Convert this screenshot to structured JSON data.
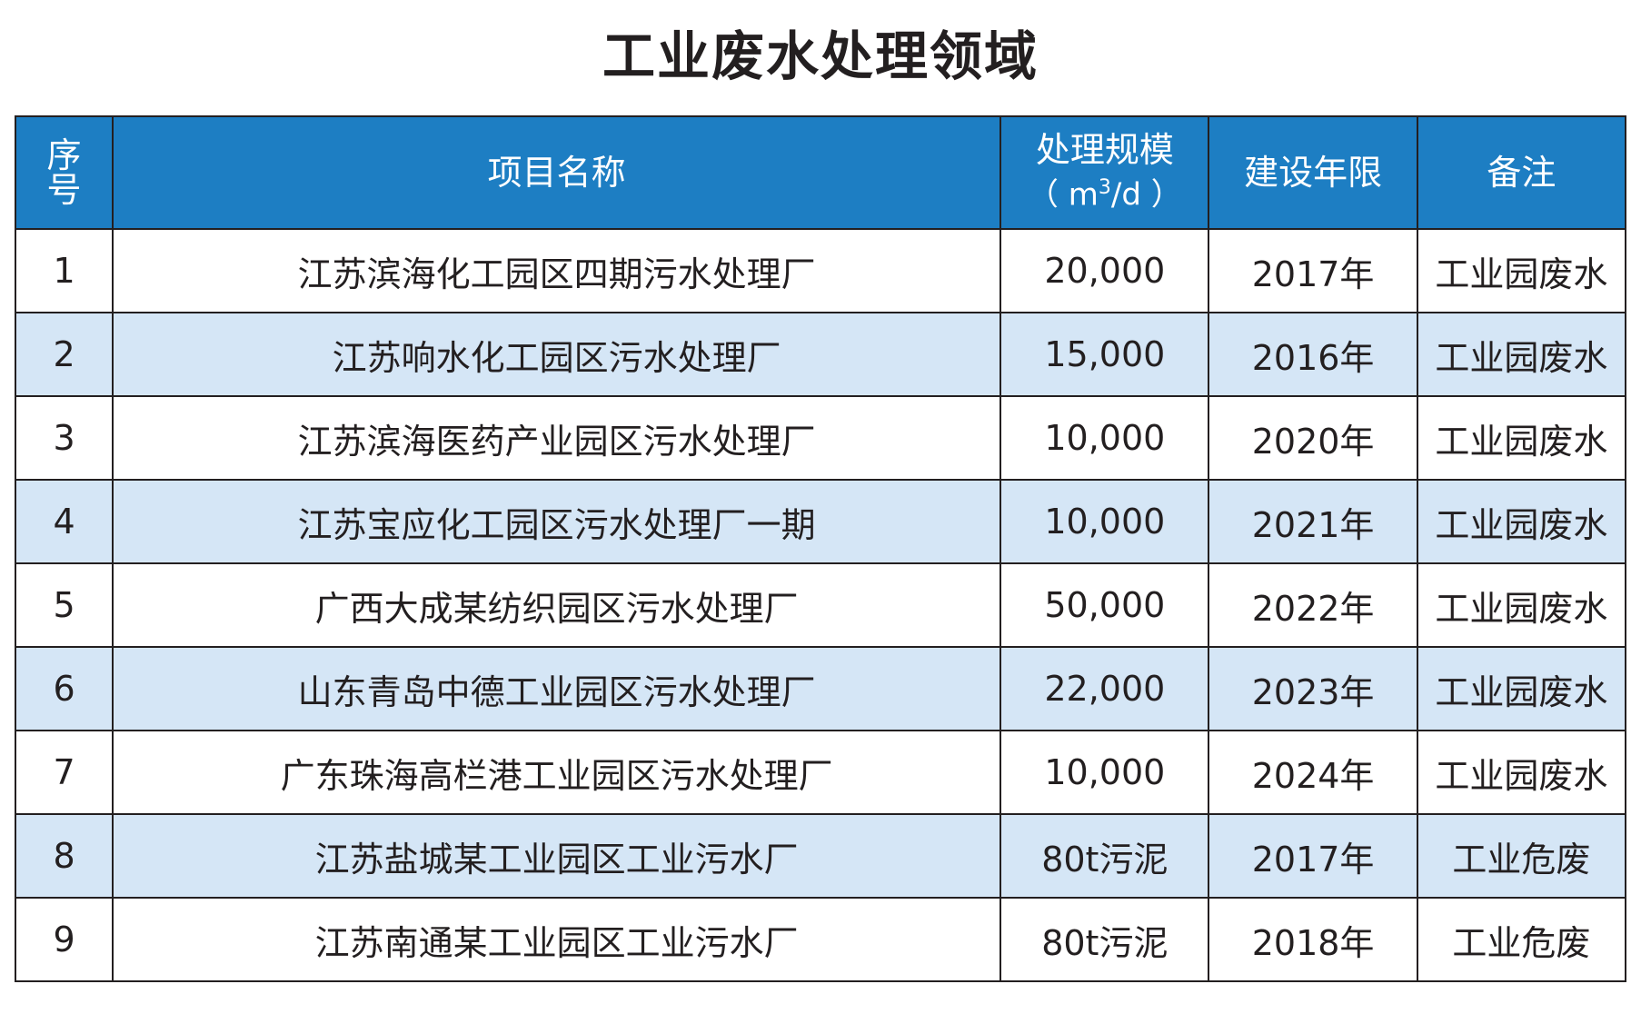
{
  "title": "工业废水处理领域",
  "header": {
    "no_line1": "序",
    "no_line2": "号",
    "name": "项目名称",
    "scale_line1": "处理规模",
    "scale_unit_pre": "（ m",
    "scale_unit_sup": "3",
    "scale_unit_post": "/d ）",
    "year": "建设年限",
    "note": "备注"
  },
  "rows": [
    {
      "no": "1",
      "name": "江苏滨海化工园区四期污水处理厂",
      "scale": "20,000",
      "year": "2017年",
      "note": "工业园废水"
    },
    {
      "no": "2",
      "name": "江苏响水化工园区污水处理厂",
      "scale": "15,000",
      "year": "2016年",
      "note": "工业园废水"
    },
    {
      "no": "3",
      "name": "江苏滨海医药产业园区污水处理厂",
      "scale": "10,000",
      "year": "2020年",
      "note": "工业园废水"
    },
    {
      "no": "4",
      "name": "江苏宝应化工园区污水处理厂一期",
      "scale": "10,000",
      "year": "2021年",
      "note": "工业园废水"
    },
    {
      "no": "5",
      "name": "广西大成某纺织园区污水处理厂",
      "scale": "50,000",
      "year": "2022年",
      "note": "工业园废水"
    },
    {
      "no": "6",
      "name": "山东青岛中德工业园区污水处理厂",
      "scale": "22,000",
      "year": "2023年",
      "note": "工业园废水"
    },
    {
      "no": "7",
      "name": "广东珠海高栏港工业园区污水处理厂",
      "scale": "10,000",
      "year": "2024年",
      "note": "工业园废水"
    },
    {
      "no": "8",
      "name": "江苏盐城某工业园区工业污水厂",
      "scale": "80t污泥",
      "year": "2017年",
      "note": "工业危废"
    },
    {
      "no": "9",
      "name": "江苏南通某工业园区工业污水厂",
      "scale": "80t污泥",
      "year": "2018年",
      "note": "工业危废"
    }
  ],
  "colors": {
    "header_bg": "#1d7ec3",
    "header_text": "#ffffff",
    "alt_row_bg": "#d5e6f6",
    "border": "#231f20"
  }
}
